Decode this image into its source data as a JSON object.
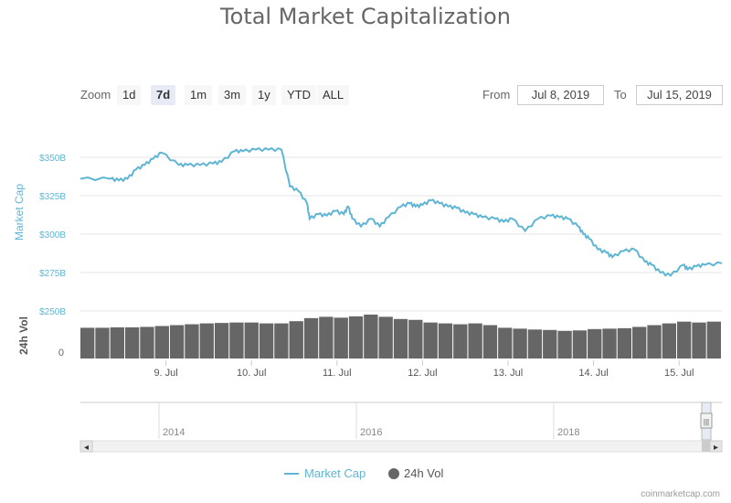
{
  "title": "Total Market Capitalization",
  "zoom": {
    "label": "Zoom",
    "buttons": [
      "1d",
      "7d",
      "1m",
      "3m",
      "1y",
      "YTD",
      "ALL"
    ],
    "active": "7d"
  },
  "range": {
    "from_label": "From",
    "from_value": "Jul 8, 2019",
    "to_label": "To",
    "to_value": "Jul 15, 2019"
  },
  "colors": {
    "market_cap": "#5fb5d4",
    "volume": "#666666",
    "grid": "#e6e6e6",
    "axis_text": "#5fb5d4"
  },
  "navigator": {
    "year_labels": [
      "2014",
      "2016",
      "2018"
    ],
    "scroll_left": "◂",
    "scroll_right": "▸",
    "handle": "|||"
  },
  "legend": {
    "market_cap": "Market Cap",
    "volume": "24h Vol"
  },
  "credit": "coinmarketcap.com",
  "chart_data": {
    "type": "line",
    "title": "Total Market Capitalization",
    "x_tick_labels": [
      "9. Jul",
      "10. Jul",
      "11. Jul",
      "12. Jul",
      "13. Jul",
      "14. Jul",
      "15. Jul"
    ],
    "x_range_days": [
      8.0,
      15.5
    ],
    "ylabel": "Market Cap",
    "y_tick_labels": [
      "$350B",
      "$325B",
      "$300B",
      "$275B",
      "$250B"
    ],
    "ylim": [
      250,
      375
    ],
    "volume_ylabel": "24h Vol",
    "volume_tick_label": "0",
    "grid": true,
    "legend_position": "bottom-center",
    "series": [
      {
        "name": "Market Cap",
        "x_days": [
          8.0,
          8.35,
          8.45,
          8.55,
          8.65,
          8.75,
          8.85,
          8.95,
          9.15,
          9.25,
          9.4,
          9.55,
          9.65,
          9.8,
          9.9,
          10.05,
          10.2,
          10.35,
          10.45,
          10.55,
          10.65,
          10.68,
          10.78,
          10.88,
          10.98,
          11.08,
          11.13,
          11.18,
          11.28,
          11.4,
          11.5,
          11.6,
          11.75,
          11.85,
          11.92,
          12.0,
          12.1,
          12.2,
          12.3,
          12.4,
          12.5,
          12.6,
          12.7,
          12.85,
          12.95,
          13.05,
          13.2,
          13.35,
          13.5,
          13.6,
          13.7,
          13.82,
          13.88,
          13.95,
          14.05,
          14.15,
          14.22,
          14.35,
          14.48,
          14.6,
          14.68,
          14.78,
          14.9,
          15.05,
          15.1,
          15.2,
          15.3,
          15.5
        ],
        "values": [
          336,
          336,
          335,
          336,
          342,
          345,
          349,
          353,
          345,
          345,
          345,
          346,
          347,
          354,
          354,
          355,
          355,
          355,
          331,
          328,
          320,
          310,
          313,
          312,
          315,
          313,
          318,
          310,
          305,
          310,
          305,
          311,
          318,
          320,
          318,
          319,
          322,
          320,
          318,
          317,
          314,
          313,
          311,
          310,
          308,
          310,
          302,
          310,
          312,
          311,
          310,
          305,
          300,
          297,
          290,
          288,
          285,
          289,
          290,
          282,
          280,
          275,
          273,
          280,
          277,
          279,
          280,
          281
        ]
      },
      {
        "name": "24h Vol",
        "relative_values": [
          0.7,
          0.7,
          0.71,
          0.71,
          0.72,
          0.74,
          0.76,
          0.78,
          0.8,
          0.81,
          0.82,
          0.82,
          0.8,
          0.8,
          0.85,
          0.92,
          0.95,
          0.93,
          0.96,
          1.0,
          0.95,
          0.9,
          0.88,
          0.82,
          0.8,
          0.78,
          0.8,
          0.76,
          0.7,
          0.68,
          0.66,
          0.65,
          0.63,
          0.64,
          0.67,
          0.68,
          0.69,
          0.72,
          0.76,
          0.8,
          0.84,
          0.82,
          0.84
        ]
      }
    ]
  }
}
